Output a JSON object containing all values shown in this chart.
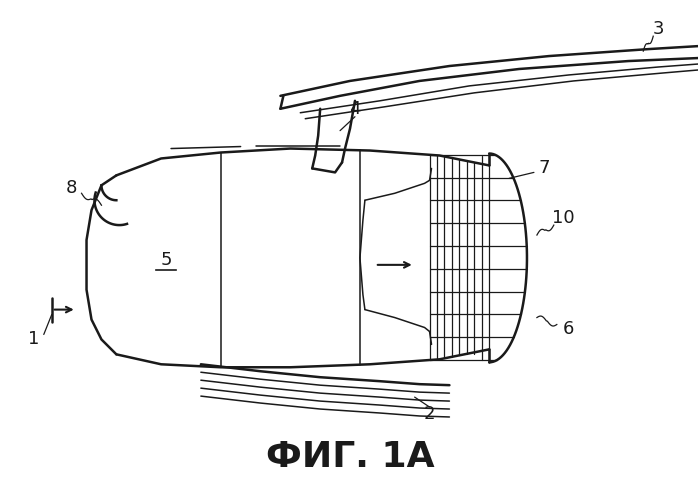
{
  "title": "ФИГ. 1А",
  "title_fontsize": 26,
  "bg_color": "#ffffff",
  "line_color": "#1a1a1a",
  "lw_main": 1.8,
  "lw_thin": 1.1,
  "lw_grid": 0.9,
  "label_fontsize": 13
}
